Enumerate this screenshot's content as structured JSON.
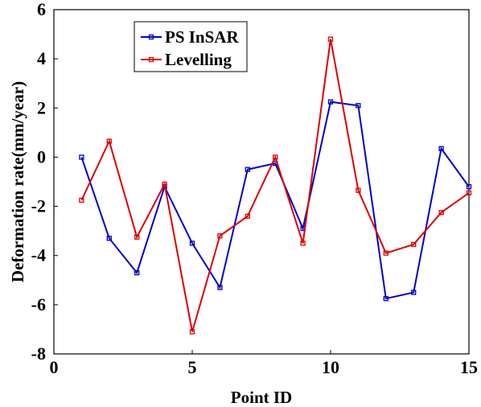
{
  "chart_data": {
    "type": "line",
    "xlabel": "Point ID",
    "ylabel": "Deformation rate(mm/year)",
    "xlim": [
      0,
      15
    ],
    "ylim": [
      -8,
      6
    ],
    "xticks": [
      "0",
      "5",
      "10",
      "15"
    ],
    "yticks": [
      "-8",
      "-6",
      "-4",
      "-2",
      "0",
      "2",
      "4",
      "6"
    ],
    "grid": false,
    "legend_position": "top-left",
    "x": [
      1,
      2,
      3,
      4,
      5,
      6,
      7,
      8,
      9,
      10,
      11,
      12,
      13,
      14,
      15
    ],
    "series": [
      {
        "name": "PS InSAR",
        "color": "#0000cc",
        "values": [
          0.0,
          -3.3,
          -4.7,
          -1.2,
          -3.5,
          -5.3,
          -0.5,
          -0.25,
          -2.9,
          2.25,
          2.1,
          -5.75,
          -5.5,
          0.35,
          -1.2
        ]
      },
      {
        "name": "Levelling",
        "color": "#dd0000",
        "values": [
          -1.75,
          0.65,
          -3.25,
          -1.1,
          -7.1,
          -3.2,
          -2.4,
          0.0,
          -3.5,
          4.8,
          -1.35,
          -3.9,
          -3.55,
          -2.25,
          -1.45
        ]
      }
    ]
  }
}
